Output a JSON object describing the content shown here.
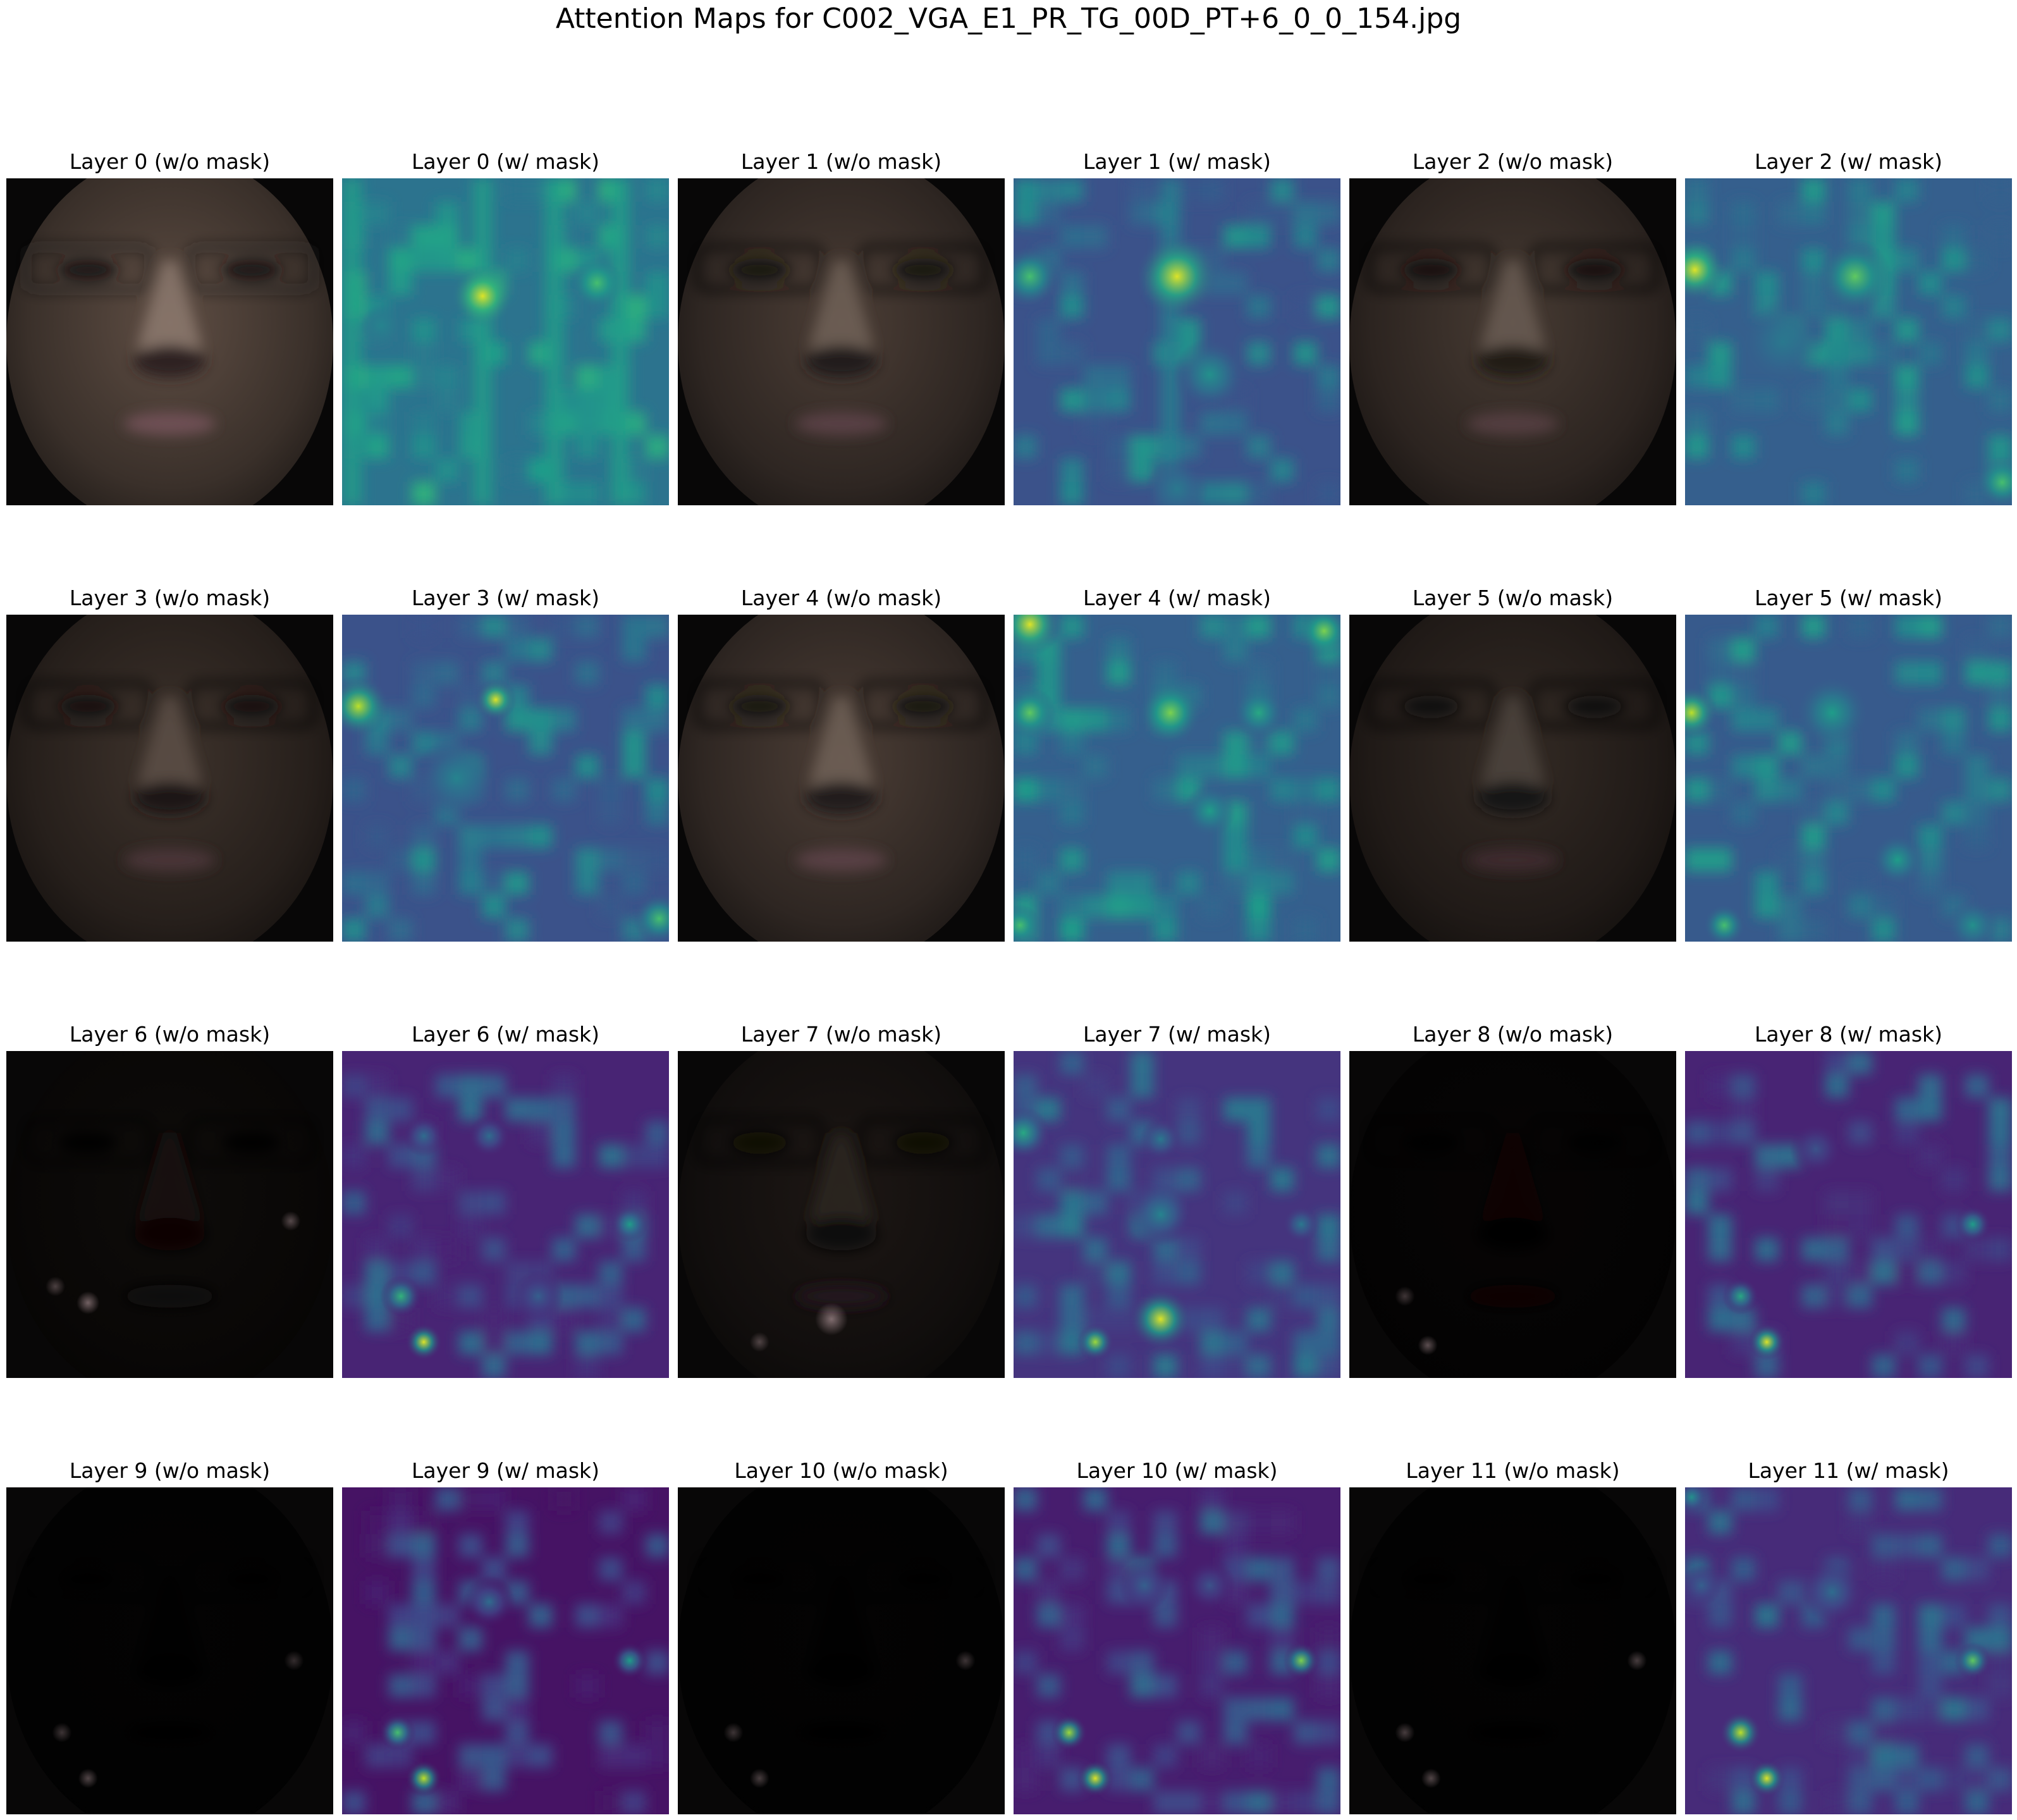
{
  "title": "Attention Maps for C002_VGA_E1_PR_TG_00D_PT+6_0_0_154.jpg",
  "panels": [
    {
      "label": "Layer 0 (w/o mask)",
      "kind": "face",
      "brightness": 1.0,
      "spots": []
    },
    {
      "label": "Layer 0 (w/ mask)",
      "kind": "heatmap",
      "base": 0.38,
      "bands": [
        0.0,
        0.4,
        0.62,
        0.82
      ],
      "spots": [
        [
          0.43,
          0.36,
          0.06,
          0.95
        ],
        [
          0.78,
          0.32,
          0.05,
          0.7
        ],
        [
          0.12,
          0.45,
          0.04,
          0.45
        ]
      ]
    },
    {
      "label": "Layer 1 (w/o mask)",
      "kind": "face",
      "brightness": 0.8,
      "spots": []
    },
    {
      "label": "Layer 1 (w/ mask)",
      "kind": "heatmap",
      "base": 0.25,
      "bands": [
        0.45
      ],
      "spots": [
        [
          0.5,
          0.3,
          0.08,
          0.95
        ],
        [
          0.05,
          0.3,
          0.06,
          0.7
        ],
        [
          0.6,
          0.6,
          0.07,
          0.5
        ],
        [
          0.5,
          0.95,
          0.06,
          0.4
        ]
      ]
    },
    {
      "label": "Layer 2 (w/o mask)",
      "kind": "face",
      "brightness": 0.75,
      "spots": []
    },
    {
      "label": "Layer 2 (w/ mask)",
      "kind": "heatmap",
      "base": 0.3,
      "bands": [],
      "spots": [
        [
          0.03,
          0.28,
          0.06,
          0.95
        ],
        [
          0.52,
          0.3,
          0.07,
          0.75
        ],
        [
          0.97,
          0.93,
          0.05,
          0.7
        ],
        [
          0.3,
          0.5,
          0.08,
          0.4
        ]
      ]
    },
    {
      "label": "Layer 3 (w/o mask)",
      "kind": "face",
      "brightness": 0.65,
      "spots": []
    },
    {
      "label": "Layer 3 (w/ mask)",
      "kind": "heatmap",
      "base": 0.25,
      "bands": [],
      "spots": [
        [
          0.05,
          0.28,
          0.06,
          0.9
        ],
        [
          0.47,
          0.26,
          0.04,
          0.95
        ],
        [
          0.97,
          0.93,
          0.05,
          0.7
        ],
        [
          0.35,
          0.5,
          0.08,
          0.45
        ]
      ]
    },
    {
      "label": "Layer 4 (w/o mask)",
      "kind": "face",
      "brightness": 0.8,
      "spots": []
    },
    {
      "label": "Layer 4 (w/ mask)",
      "kind": "heatmap",
      "base": 0.3,
      "bands": [],
      "spots": [
        [
          0.05,
          0.03,
          0.06,
          0.95
        ],
        [
          0.95,
          0.05,
          0.05,
          0.8
        ],
        [
          0.05,
          0.3,
          0.05,
          0.75
        ],
        [
          0.48,
          0.3,
          0.06,
          0.8
        ],
        [
          0.75,
          0.3,
          0.05,
          0.6
        ],
        [
          0.6,
          0.6,
          0.05,
          0.55
        ],
        [
          0.02,
          0.95,
          0.04,
          0.7
        ]
      ]
    },
    {
      "label": "Layer 5 (w/o mask)",
      "kind": "face",
      "brightness": 0.55,
      "spots": []
    },
    {
      "label": "Layer 5 (w/ mask)",
      "kind": "heatmap",
      "base": 0.28,
      "bands": [],
      "spots": [
        [
          0.02,
          0.3,
          0.05,
          0.9
        ],
        [
          0.45,
          0.3,
          0.07,
          0.55
        ],
        [
          0.65,
          0.75,
          0.05,
          0.55
        ],
        [
          0.12,
          0.95,
          0.04,
          0.7
        ],
        [
          0.88,
          0.95,
          0.05,
          0.5
        ]
      ]
    },
    {
      "label": "Layer 6 (w/o mask)",
      "kind": "face",
      "brightness": 0.15,
      "spots": [
        [
          0.25,
          0.77,
          0.035,
          0.55
        ],
        [
          0.87,
          0.52,
          0.03,
          0.4
        ],
        [
          0.15,
          0.72,
          0.03,
          0.35
        ]
      ]
    },
    {
      "label": "Layer 6 (w/ mask)",
      "kind": "heatmap",
      "base": 0.1,
      "bands": [],
      "spots": [
        [
          0.25,
          0.89,
          0.035,
          0.95
        ],
        [
          0.18,
          0.75,
          0.04,
          0.65
        ],
        [
          0.88,
          0.53,
          0.035,
          0.55
        ],
        [
          0.25,
          0.26,
          0.04,
          0.35
        ],
        [
          0.45,
          0.26,
          0.04,
          0.35
        ],
        [
          0.6,
          0.75,
          0.05,
          0.3
        ]
      ]
    },
    {
      "label": "Layer 7 (w/o mask)",
      "kind": "face",
      "brightness": 0.3,
      "spots": [
        [
          0.47,
          0.82,
          0.05,
          0.6
        ],
        [
          0.25,
          0.89,
          0.03,
          0.35
        ]
      ]
    },
    {
      "label": "Layer 7 (w/ mask)",
      "kind": "heatmap",
      "base": 0.15,
      "bands": [],
      "spots": [
        [
          0.45,
          0.82,
          0.06,
          0.95
        ],
        [
          0.25,
          0.89,
          0.035,
          0.85
        ],
        [
          0.03,
          0.25,
          0.05,
          0.6
        ],
        [
          0.45,
          0.5,
          0.06,
          0.45
        ],
        [
          0.88,
          0.53,
          0.035,
          0.4
        ],
        [
          0.45,
          0.27,
          0.04,
          0.4
        ]
      ]
    },
    {
      "label": "Layer 8 (w/o mask)",
      "kind": "face",
      "brightness": 0.07,
      "spots": [
        [
          0.24,
          0.9,
          0.03,
          0.45
        ],
        [
          0.17,
          0.75,
          0.03,
          0.3
        ]
      ]
    },
    {
      "label": "Layer 8 (w/ mask)",
      "kind": "heatmap",
      "base": 0.1,
      "bands": [],
      "spots": [
        [
          0.25,
          0.89,
          0.035,
          0.95
        ],
        [
          0.17,
          0.75,
          0.035,
          0.6
        ],
        [
          0.88,
          0.53,
          0.035,
          0.55
        ],
        [
          0.4,
          0.3,
          0.05,
          0.25
        ]
      ]
    },
    {
      "label": "Layer 9 (w/o mask)",
      "kind": "face",
      "brightness": 0.04,
      "spots": [
        [
          0.25,
          0.89,
          0.03,
          0.4
        ],
        [
          0.17,
          0.75,
          0.03,
          0.3
        ],
        [
          0.88,
          0.53,
          0.03,
          0.25
        ]
      ]
    },
    {
      "label": "Layer 9 (w/ mask)",
      "kind": "heatmap",
      "base": 0.05,
      "bands": [],
      "spots": [
        [
          0.25,
          0.89,
          0.035,
          0.9
        ],
        [
          0.17,
          0.75,
          0.035,
          0.7
        ],
        [
          0.88,
          0.53,
          0.035,
          0.55
        ],
        [
          0.45,
          0.35,
          0.05,
          0.35
        ]
      ]
    },
    {
      "label": "Layer 10 (w/o mask)",
      "kind": "face",
      "brightness": 0.04,
      "spots": [
        [
          0.25,
          0.89,
          0.03,
          0.35
        ],
        [
          0.17,
          0.75,
          0.03,
          0.3
        ],
        [
          0.88,
          0.53,
          0.03,
          0.3
        ]
      ]
    },
    {
      "label": "Layer 10 (w/ mask)",
      "kind": "heatmap",
      "base": 0.08,
      "bands": [],
      "spots": [
        [
          0.25,
          0.89,
          0.035,
          0.95
        ],
        [
          0.17,
          0.75,
          0.035,
          0.85
        ],
        [
          0.88,
          0.53,
          0.035,
          0.8
        ],
        [
          0.4,
          0.3,
          0.05,
          0.3
        ],
        [
          0.6,
          0.3,
          0.05,
          0.25
        ]
      ]
    },
    {
      "label": "Layer 11 (w/o mask)",
      "kind": "face",
      "brightness": 0.04,
      "spots": [
        [
          0.25,
          0.89,
          0.03,
          0.4
        ],
        [
          0.17,
          0.75,
          0.03,
          0.35
        ],
        [
          0.88,
          0.53,
          0.03,
          0.35
        ]
      ]
    },
    {
      "label": "Layer 11 (w/ mask)",
      "kind": "heatmap",
      "base": 0.12,
      "bands": [],
      "spots": [
        [
          0.25,
          0.89,
          0.035,
          0.95
        ],
        [
          0.17,
          0.75,
          0.04,
          0.9
        ],
        [
          0.88,
          0.53,
          0.035,
          0.75
        ],
        [
          0.45,
          0.32,
          0.06,
          0.35
        ],
        [
          0.05,
          0.3,
          0.04,
          0.3
        ],
        [
          0.02,
          0.03,
          0.03,
          0.5
        ]
      ]
    }
  ]
}
